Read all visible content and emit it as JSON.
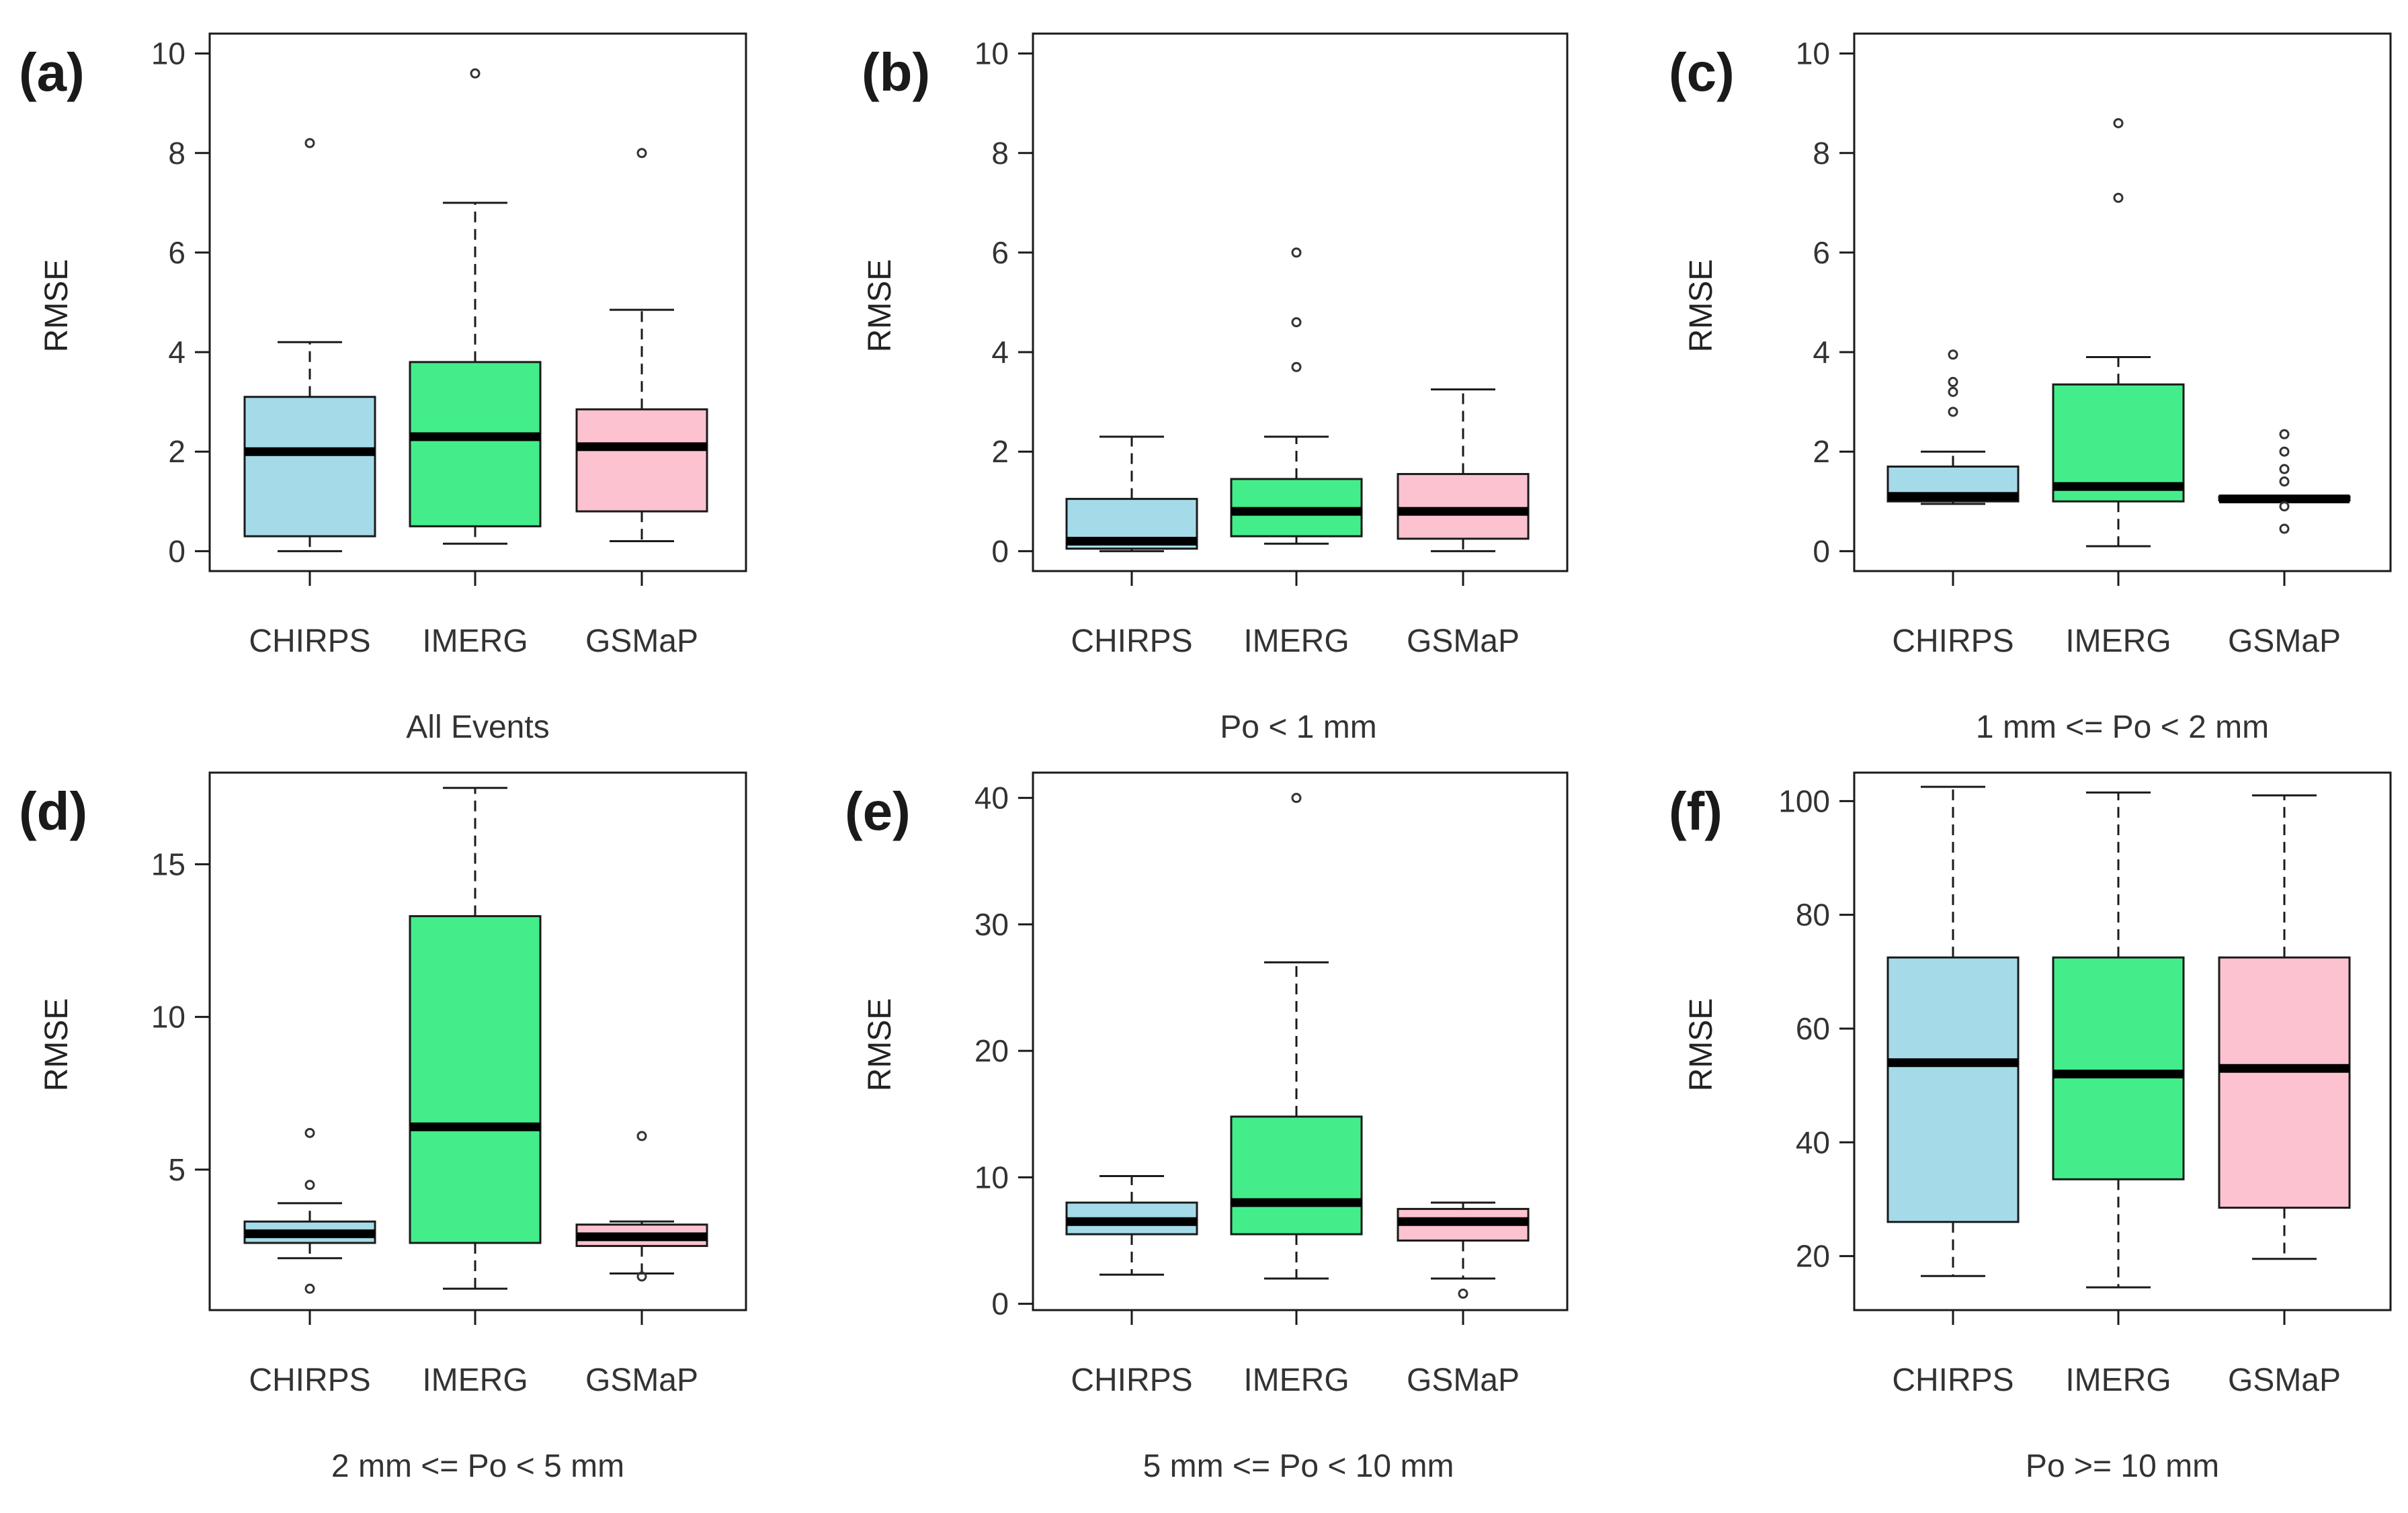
{
  "colors": {
    "CHIRPS": "#a5dbe8",
    "IMERG": "#43ee8a",
    "GSMaP": "#fdc2cf"
  },
  "chart_data": [
    {
      "type": "boxplot",
      "panel_label": "(a)",
      "title": "All Events",
      "ylabel": "RMSE",
      "categories": [
        "CHIRPS",
        "IMERG",
        "GSMaP"
      ],
      "ylim": [
        -0.4,
        10.4
      ],
      "yticks": [
        0,
        2,
        4,
        6,
        8,
        10
      ],
      "boxes": [
        {
          "name": "CHIRPS",
          "whisker_low": 0.0,
          "q1": 0.3,
          "median": 2.0,
          "q3": 3.1,
          "whisker_high": 4.2,
          "outliers": [
            8.2
          ]
        },
        {
          "name": "IMERG",
          "whisker_low": 0.15,
          "q1": 0.5,
          "median": 2.3,
          "q3": 3.8,
          "whisker_high": 7.0,
          "outliers": [
            9.6
          ]
        },
        {
          "name": "GSMaP",
          "whisker_low": 0.2,
          "q1": 0.8,
          "median": 2.1,
          "q3": 2.85,
          "whisker_high": 4.85,
          "outliers": [
            8.0
          ]
        }
      ]
    },
    {
      "type": "boxplot",
      "panel_label": "(b)",
      "title": "Po < 1 mm",
      "ylabel": "RMSE",
      "categories": [
        "CHIRPS",
        "IMERG",
        "GSMaP"
      ],
      "ylim": [
        -0.4,
        10.4
      ],
      "yticks": [
        0,
        2,
        4,
        6,
        8,
        10
      ],
      "boxes": [
        {
          "name": "CHIRPS",
          "whisker_low": 0.0,
          "q1": 0.05,
          "median": 0.2,
          "q3": 1.05,
          "whisker_high": 2.3,
          "outliers": []
        },
        {
          "name": "IMERG",
          "whisker_low": 0.15,
          "q1": 0.3,
          "median": 0.8,
          "q3": 1.45,
          "whisker_high": 2.3,
          "outliers": [
            3.7,
            4.6,
            6.0
          ]
        },
        {
          "name": "GSMaP",
          "whisker_low": 0.0,
          "q1": 0.25,
          "median": 0.8,
          "q3": 1.55,
          "whisker_high": 3.25,
          "outliers": []
        }
      ]
    },
    {
      "type": "boxplot",
      "panel_label": "(c)",
      "title": "1 mm <= Po < 2 mm",
      "ylabel": "RMSE",
      "categories": [
        "CHIRPS",
        "IMERG",
        "GSMaP"
      ],
      "ylim": [
        -0.4,
        10.4
      ],
      "yticks": [
        0,
        2,
        4,
        6,
        8,
        10
      ],
      "boxes": [
        {
          "name": "CHIRPS",
          "whisker_low": 0.95,
          "q1": 1.0,
          "median": 1.1,
          "q3": 1.7,
          "whisker_high": 2.0,
          "outliers": [
            2.8,
            3.2,
            3.4,
            3.95
          ]
        },
        {
          "name": "IMERG",
          "whisker_low": 0.1,
          "q1": 1.0,
          "median": 1.3,
          "q3": 3.35,
          "whisker_high": 3.9,
          "outliers": [
            7.1,
            8.6
          ]
        },
        {
          "name": "GSMaP",
          "whisker_low": 1.0,
          "q1": 1.02,
          "median": 1.05,
          "q3": 1.1,
          "whisker_high": 1.1,
          "outliers": [
            0.45,
            0.9,
            1.4,
            1.65,
            2.0,
            2.35
          ]
        }
      ]
    },
    {
      "type": "boxplot",
      "panel_label": "(d)",
      "title": "2 mm <= Po < 5 mm",
      "ylabel": "RMSE",
      "categories": [
        "CHIRPS",
        "IMERG",
        "GSMaP"
      ],
      "ylim": [
        0.4,
        18.0
      ],
      "yticks": [
        5,
        10,
        15
      ],
      "boxes": [
        {
          "name": "CHIRPS",
          "whisker_low": 2.1,
          "q1": 2.6,
          "median": 2.9,
          "q3": 3.3,
          "whisker_high": 3.9,
          "outliers": [
            1.1,
            4.5,
            6.2
          ]
        },
        {
          "name": "IMERG",
          "whisker_low": 1.1,
          "q1": 2.6,
          "median": 6.4,
          "q3": 13.3,
          "whisker_high": 17.5,
          "outliers": []
        },
        {
          "name": "GSMaP",
          "whisker_low": 1.6,
          "q1": 2.5,
          "median": 2.8,
          "q3": 3.2,
          "whisker_high": 3.3,
          "outliers": [
            1.5,
            6.1
          ]
        }
      ]
    },
    {
      "type": "boxplot",
      "panel_label": "(e)",
      "title": "5 mm <= Po < 10 mm",
      "ylabel": "RMSE",
      "categories": [
        "CHIRPS",
        "IMERG",
        "GSMaP"
      ],
      "ylim": [
        -0.5,
        42.0
      ],
      "yticks": [
        0,
        10,
        20,
        30,
        40
      ],
      "boxes": [
        {
          "name": "CHIRPS",
          "whisker_low": 2.3,
          "q1": 5.5,
          "median": 6.5,
          "q3": 8.0,
          "whisker_high": 10.1,
          "outliers": []
        },
        {
          "name": "IMERG",
          "whisker_low": 2.0,
          "q1": 5.5,
          "median": 8.0,
          "q3": 14.8,
          "whisker_high": 27.0,
          "outliers": [
            40.0
          ]
        },
        {
          "name": "GSMaP",
          "whisker_low": 2.0,
          "q1": 5.0,
          "median": 6.5,
          "q3": 7.5,
          "whisker_high": 8.0,
          "outliers": [
            0.8
          ]
        }
      ]
    },
    {
      "type": "boxplot",
      "panel_label": "(f)",
      "title": "Po >= 10 mm",
      "ylabel": "RMSE",
      "categories": [
        "CHIRPS",
        "IMERG",
        "GSMaP"
      ],
      "ylim": [
        10.5,
        105.0
      ],
      "yticks": [
        20,
        40,
        60,
        80,
        100
      ],
      "boxes": [
        {
          "name": "CHIRPS",
          "whisker_low": 16.5,
          "q1": 26.0,
          "median": 54.0,
          "q3": 72.5,
          "whisker_high": 102.5,
          "outliers": []
        },
        {
          "name": "IMERG",
          "whisker_low": 14.5,
          "q1": 33.5,
          "median": 52.0,
          "q3": 72.5,
          "whisker_high": 101.5,
          "outliers": []
        },
        {
          "name": "GSMaP",
          "whisker_low": 19.5,
          "q1": 28.5,
          "median": 53.0,
          "q3": 72.5,
          "whisker_high": 101.0,
          "outliers": []
        }
      ]
    }
  ]
}
